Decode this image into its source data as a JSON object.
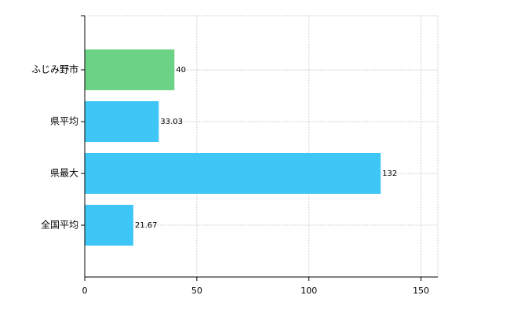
{
  "chart_data": {
    "type": "bar",
    "orientation": "horizontal",
    "categories": [
      "ふじみ野市",
      "県平均",
      "県最大",
      "全国平均"
    ],
    "values": [
      40,
      33.03,
      132,
      21.67
    ],
    "colors": [
      "#6cd386",
      "#3ec6f6",
      "#3ec6f6",
      "#3ec6f6"
    ],
    "xlim": [
      0,
      157.5
    ],
    "xticks": [
      0,
      50,
      100,
      150
    ],
    "grid": true
  }
}
